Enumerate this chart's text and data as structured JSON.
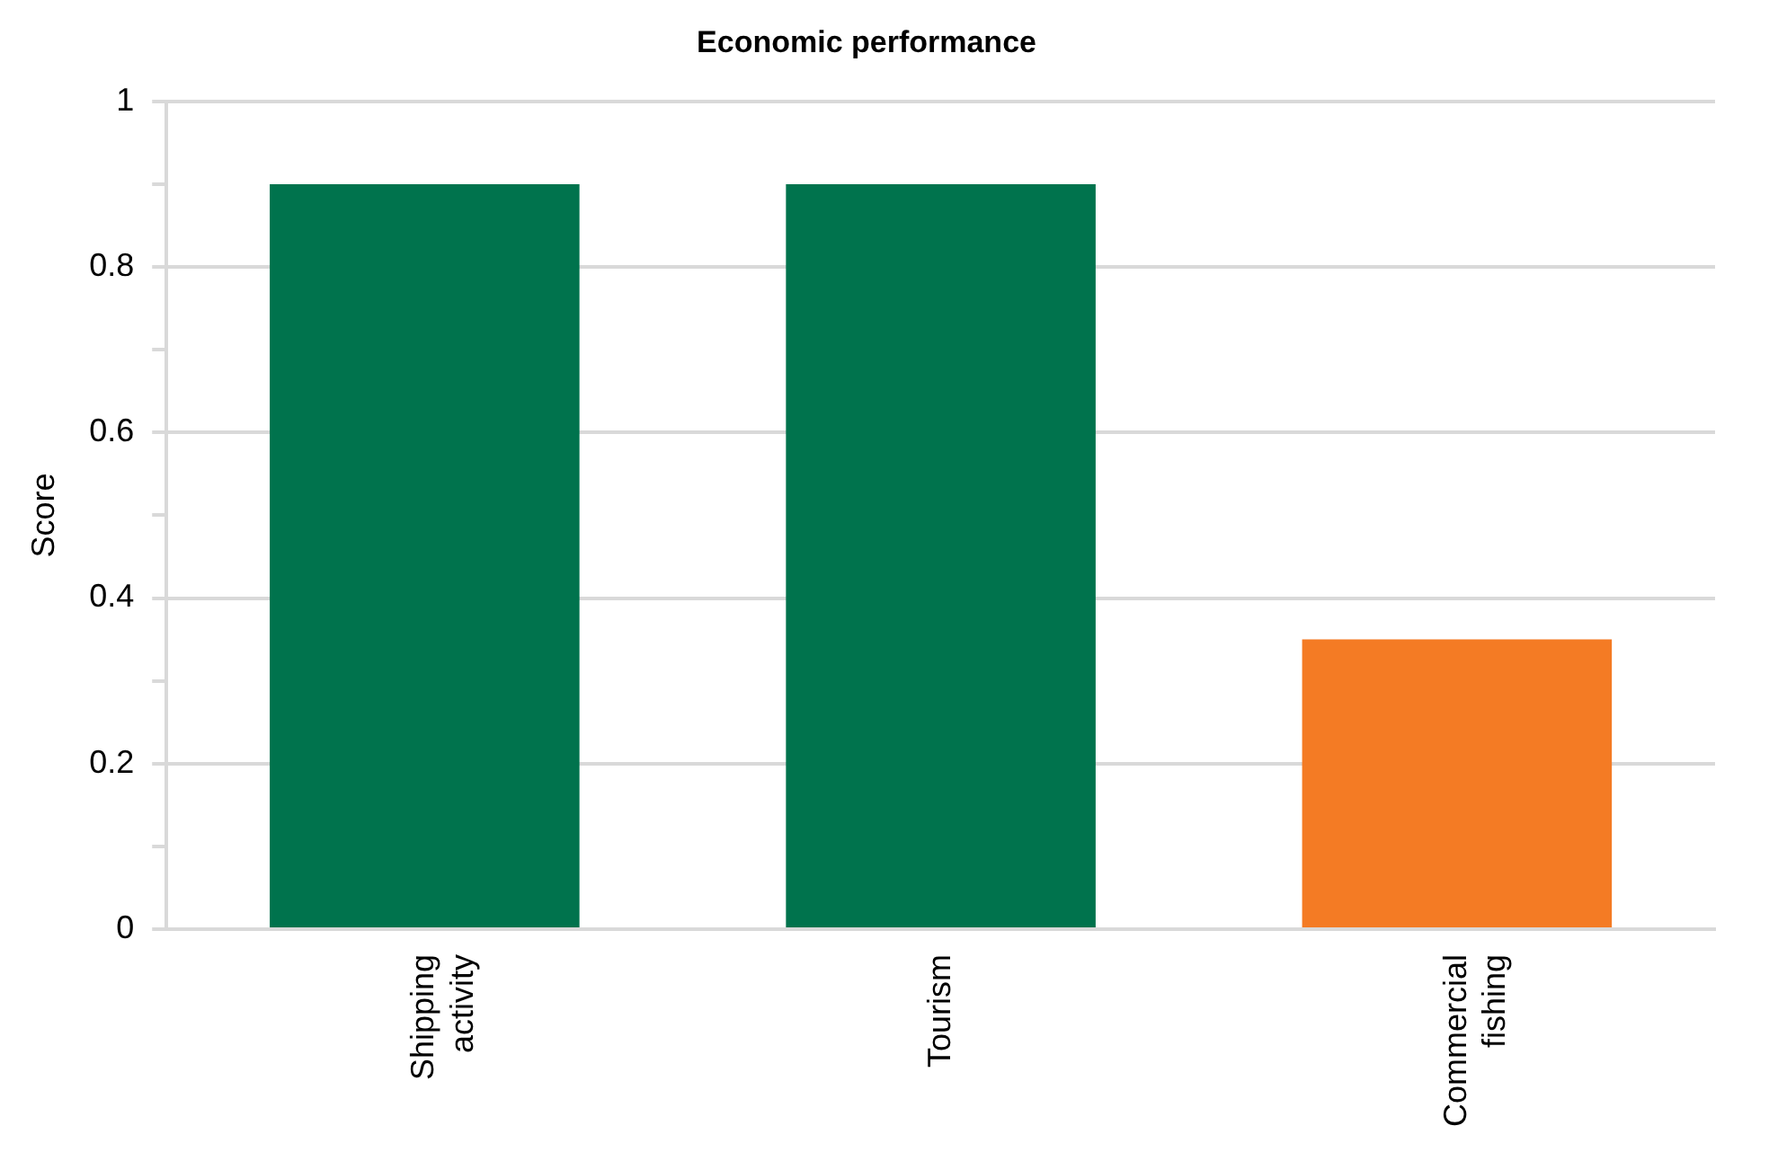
{
  "chart_data": {
    "type": "bar",
    "title": "Economic performance",
    "ylabel": "Score",
    "categories": [
      "Shipping activity",
      "Tourism",
      "Commercial fishing"
    ],
    "values": [
      0.9,
      0.9,
      0.35
    ],
    "colors": [
      "#00734d",
      "#00734d",
      "#f47b24"
    ],
    "ylim": [
      0,
      1
    ],
    "yticks": [
      0,
      {
        "value": 0.1,
        "label": null
      },
      0.2,
      {
        "value": 0.3,
        "label": null
      },
      0.4,
      {
        "value": 0.5,
        "label": null
      },
      0.6,
      {
        "value": 0.7,
        "label": null
      },
      0.8,
      {
        "value": 0.9,
        "label": null
      },
      1
    ],
    "grid": "y",
    "legend": false
  }
}
